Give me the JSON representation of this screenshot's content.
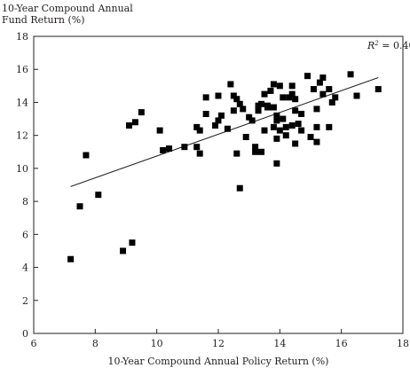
{
  "chart_data": {
    "type": "scatter",
    "title": "",
    "ylabel_line1": "10-Year Compound Annual",
    "ylabel_line2": "Fund Return (%)",
    "xlabel": "10-Year Compound Annual Policy Return (%)",
    "annotation": {
      "r2_symbol": "R",
      "r2_exp": "2",
      "r2_value": " = 0.40"
    },
    "xlim": [
      6,
      18
    ],
    "ylim": [
      0,
      18
    ],
    "xticks": [
      6,
      8,
      10,
      12,
      14,
      16,
      18
    ],
    "yticks": [
      0,
      2,
      4,
      6,
      8,
      10,
      12,
      14,
      16,
      18
    ],
    "grid": false,
    "marker": "square",
    "marker_color": "#000000",
    "trendline": {
      "x": [
        7.2,
        17.2
      ],
      "y": [
        8.9,
        15.5
      ],
      "color": "#231f20"
    },
    "points": [
      [
        7.2,
        4.5
      ],
      [
        7.5,
        7.7
      ],
      [
        7.7,
        10.8
      ],
      [
        8.1,
        8.4
      ],
      [
        8.9,
        5.0
      ],
      [
        9.1,
        12.6
      ],
      [
        9.2,
        5.5
      ],
      [
        9.3,
        12.8
      ],
      [
        9.5,
        13.4
      ],
      [
        10.1,
        12.3
      ],
      [
        10.2,
        11.1
      ],
      [
        10.4,
        11.2
      ],
      [
        10.9,
        11.3
      ],
      [
        11.3,
        11.3
      ],
      [
        11.3,
        12.5
      ],
      [
        11.4,
        12.3
      ],
      [
        11.4,
        10.9
      ],
      [
        11.6,
        14.3
      ],
      [
        11.6,
        13.3
      ],
      [
        11.9,
        12.6
      ],
      [
        12.0,
        14.4
      ],
      [
        12.0,
        12.9
      ],
      [
        12.1,
        13.2
      ],
      [
        12.3,
        12.4
      ],
      [
        12.4,
        15.1
      ],
      [
        12.5,
        14.4
      ],
      [
        12.5,
        13.5
      ],
      [
        12.6,
        14.2
      ],
      [
        12.6,
        10.9
      ],
      [
        12.7,
        13.9
      ],
      [
        12.8,
        13.6
      ],
      [
        12.9,
        11.9
      ],
      [
        12.7,
        8.8
      ],
      [
        13.0,
        13.1
      ],
      [
        13.1,
        12.9
      ],
      [
        13.2,
        11.3
      ],
      [
        13.2,
        11.0
      ],
      [
        13.3,
        13.8
      ],
      [
        13.3,
        13.5
      ],
      [
        13.4,
        13.9
      ],
      [
        13.4,
        11.0
      ],
      [
        13.5,
        14.5
      ],
      [
        13.5,
        12.3
      ],
      [
        13.6,
        13.7
      ],
      [
        13.6,
        13.8
      ],
      [
        13.7,
        14.7
      ],
      [
        13.8,
        15.1
      ],
      [
        13.8,
        13.7
      ],
      [
        13.8,
        12.5
      ],
      [
        13.9,
        13.2
      ],
      [
        13.9,
        12.9
      ],
      [
        13.9,
        11.8
      ],
      [
        13.9,
        10.3
      ],
      [
        14.0,
        15.0
      ],
      [
        14.0,
        12.3
      ],
      [
        14.1,
        14.3
      ],
      [
        14.1,
        13.0
      ],
      [
        14.2,
        12.5
      ],
      [
        14.2,
        12.0
      ],
      [
        14.3,
        14.3
      ],
      [
        14.4,
        15.0
      ],
      [
        14.4,
        14.5
      ],
      [
        14.4,
        12.6
      ],
      [
        14.5,
        14.2
      ],
      [
        14.5,
        13.5
      ],
      [
        14.5,
        11.5
      ],
      [
        14.6,
        12.7
      ],
      [
        14.7,
        13.3
      ],
      [
        14.7,
        12.3
      ],
      [
        14.9,
        15.6
      ],
      [
        15.0,
        11.9
      ],
      [
        15.1,
        14.8
      ],
      [
        15.2,
        12.5
      ],
      [
        15.2,
        11.6
      ],
      [
        15.2,
        13.6
      ],
      [
        15.3,
        15.2
      ],
      [
        15.4,
        15.5
      ],
      [
        15.4,
        14.5
      ],
      [
        15.6,
        14.8
      ],
      [
        15.6,
        12.5
      ],
      [
        15.7,
        14.0
      ],
      [
        15.8,
        14.3
      ],
      [
        16.3,
        15.7
      ],
      [
        16.5,
        14.4
      ],
      [
        17.2,
        14.8
      ]
    ]
  }
}
